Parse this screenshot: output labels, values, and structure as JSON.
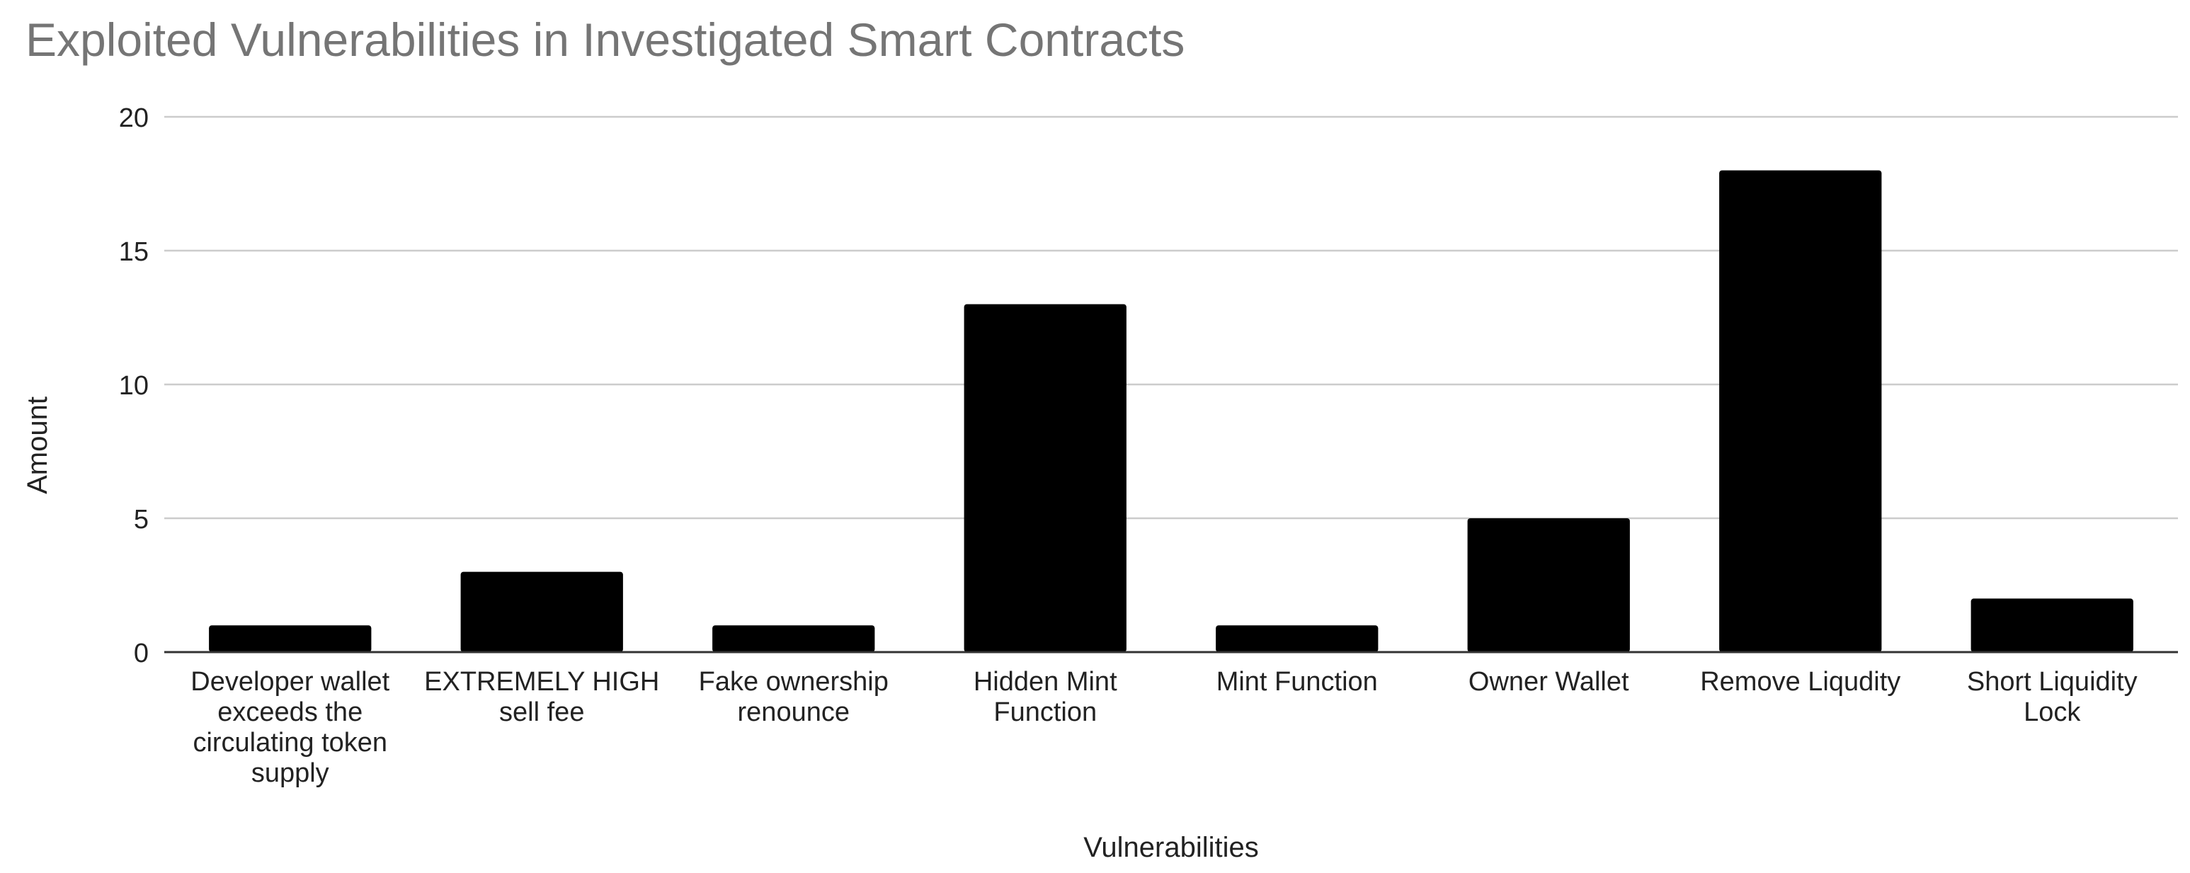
{
  "chart_data": {
    "type": "bar",
    "title": "Exploited Vulnerabilities in Investigated Smart Contracts",
    "xlabel": "Vulnerabilities",
    "ylabel": "Amount",
    "ylim": [
      0,
      20
    ],
    "yticks": [
      0,
      5,
      10,
      15,
      20
    ],
    "grid": true,
    "legend": "none",
    "categories": [
      "Developer wallet exceeds the circulating token supply",
      "EXTREMELY HIGH sell fee",
      "Fake ownership renounce",
      "Hidden Mint Function",
      "Mint Function",
      "Owner Wallet",
      "Remove Liqudity",
      "Short Liquidity Lock"
    ],
    "values": [
      1,
      3,
      1,
      13,
      1,
      5,
      18,
      2
    ],
    "colors": {
      "bar": "#000000",
      "grid": "#cccccc",
      "axis": "#333333",
      "title": "#757575",
      "text": "#222222"
    }
  }
}
